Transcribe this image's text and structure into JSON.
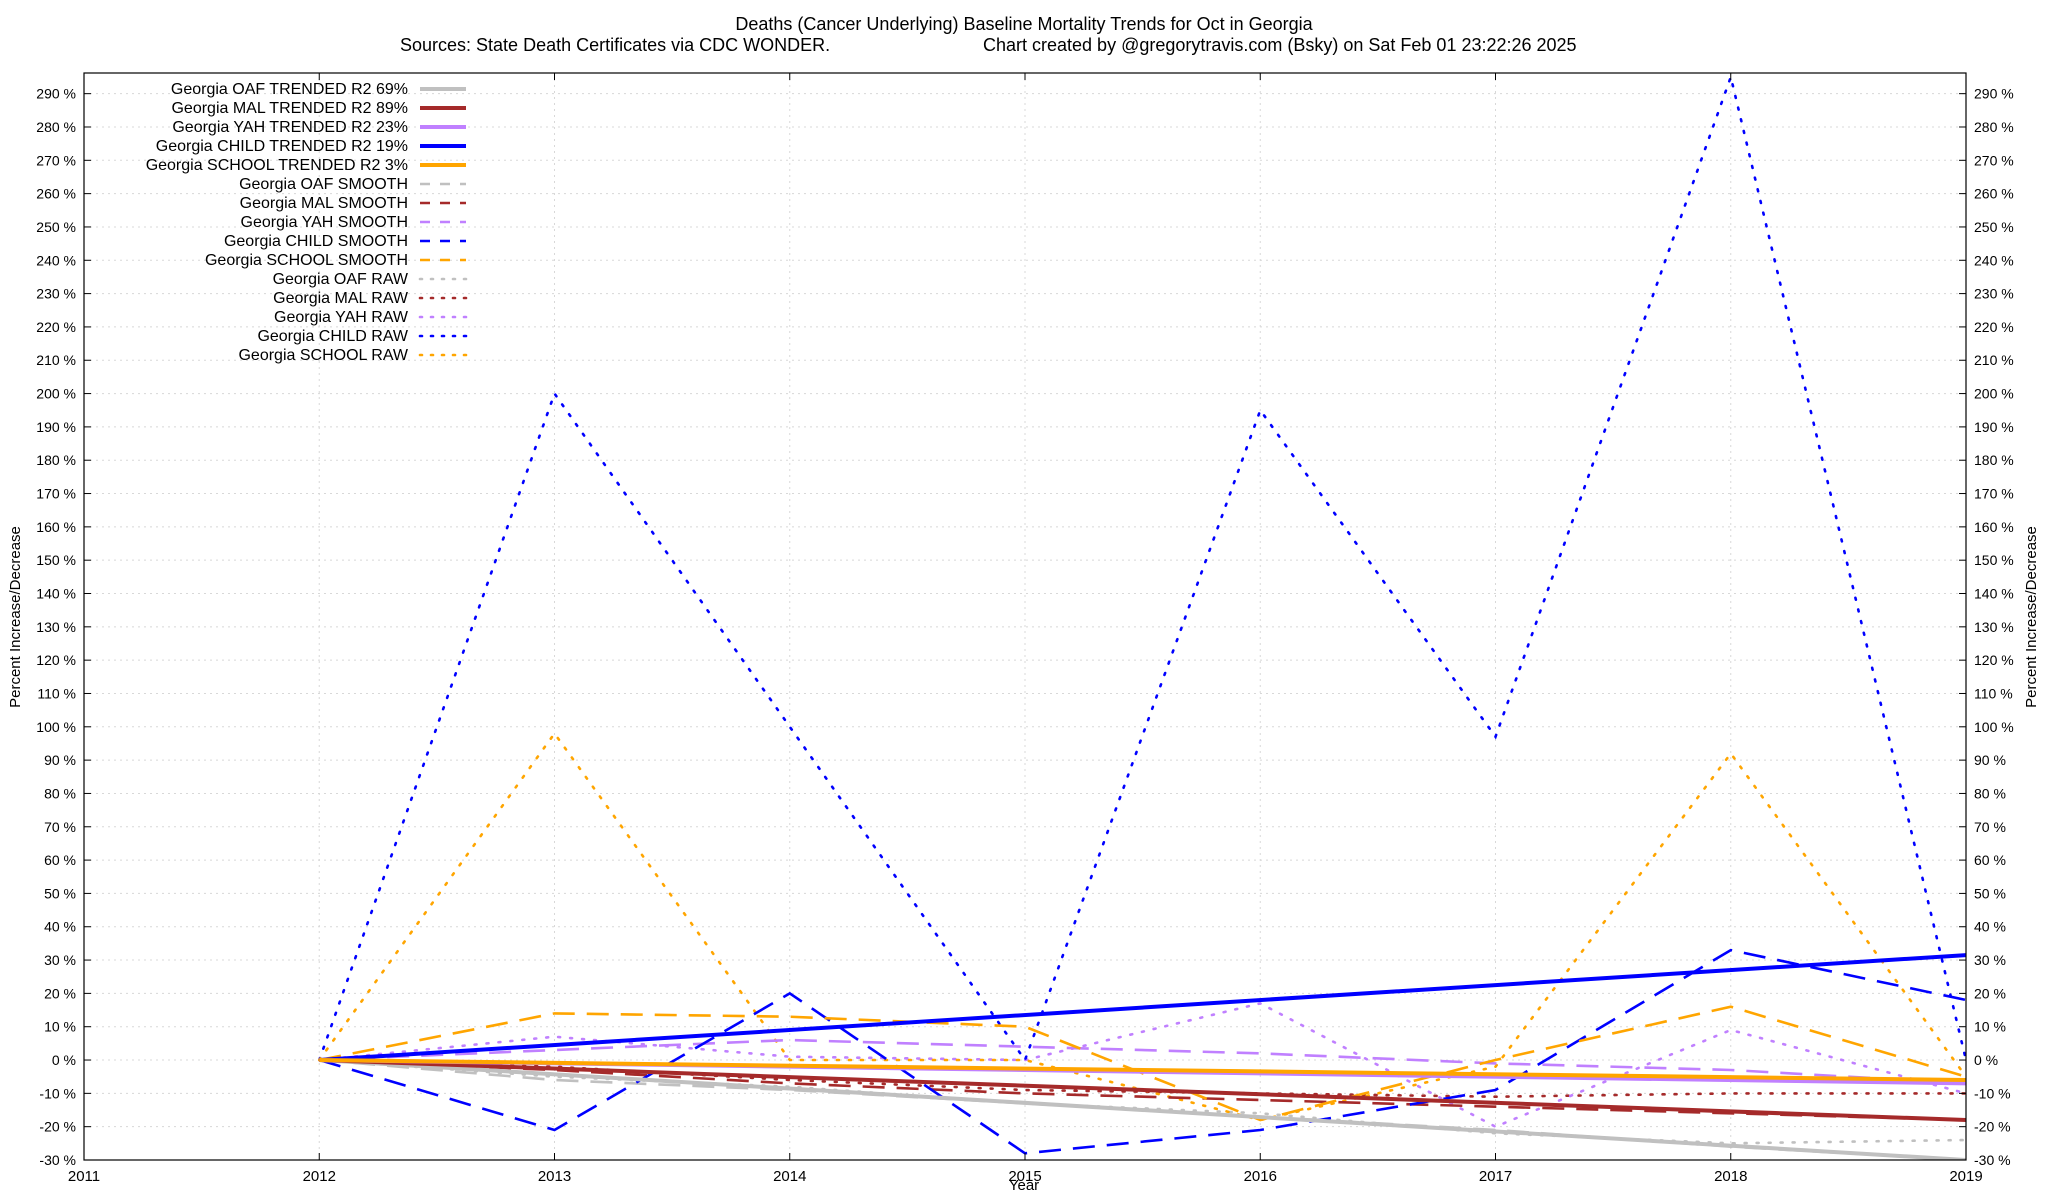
{
  "chart_data": {
    "type": "line",
    "title": "Deaths (Cancer Underlying)  Baseline Mortality Trends for Oct in Georgia",
    "subtitle_left": "Sources: State Death Certificates via CDC WONDER.",
    "subtitle_right": "Chart created by @gregorytravis.com (Bsky) on Sat Feb 01 23:22:26 2025",
    "xlabel": "Year",
    "ylabel_left": "Percent Increase/Decrease",
    "ylabel_right": "Percent Increase/Decrease",
    "xlim": [
      2011,
      2019
    ],
    "ylim": [
      -30,
      295
    ],
    "x_ticks": [
      2011,
      2012,
      2013,
      2014,
      2015,
      2016,
      2017,
      2018,
      2019
    ],
    "x_tick_labels": [
      "2011",
      "2012",
      "2013",
      "2014",
      "2015",
      "2016",
      "2017",
      "2018",
      "2019"
    ],
    "y_ticks": [
      -30,
      -20,
      -10,
      0,
      10,
      20,
      30,
      40,
      50,
      60,
      70,
      80,
      90,
      100,
      110,
      120,
      130,
      140,
      150,
      160,
      170,
      180,
      190,
      200,
      210,
      220,
      230,
      240,
      250,
      260,
      270,
      280,
      290
    ],
    "y_tick_labels": [
      "-30 %",
      "-20 %",
      "-10 %",
      "0 %",
      "10 %",
      "20 %",
      "30 %",
      "40 %",
      "50 %",
      "60 %",
      "70 %",
      "80 %",
      "90 %",
      "100 %",
      "110 %",
      "120 %",
      "130 %",
      "140 %",
      "150 %",
      "160 %",
      "170 %",
      "180 %",
      "190 %",
      "200 %",
      "210 %",
      "220 %",
      "230 %",
      "240 %",
      "250 %",
      "260 %",
      "270 %",
      "280 %",
      "290 %"
    ],
    "grid": true,
    "legend_position": "top-left",
    "series": [
      {
        "name": "Georgia OAF TRENDED R2  69%",
        "style": "solid",
        "color": "#c0c0c0",
        "x": [
          2012,
          2019
        ],
        "values": [
          0,
          -30
        ]
      },
      {
        "name": "Georgia MAL TRENDED R2  89%",
        "style": "solid",
        "color": "#a52a2a",
        "x": [
          2012,
          2019
        ],
        "values": [
          0,
          -18
        ]
      },
      {
        "name": "Georgia YAH TRENDED R2  23%",
        "style": "solid",
        "color": "#c080ff",
        "x": [
          2012,
          2019
        ],
        "values": [
          0,
          -7
        ]
      },
      {
        "name": "Georgia CHILD TRENDED R2  19%",
        "style": "solid",
        "color": "#0000ff",
        "x": [
          2012,
          2019
        ],
        "values": [
          0,
          31.5
        ]
      },
      {
        "name": "Georgia SCHOOL TRENDED R2   3%",
        "style": "solid",
        "color": "#ffa500",
        "x": [
          2012,
          2019
        ],
        "values": [
          0,
          -6
        ]
      },
      {
        "name": "Georgia OAF SMOOTH",
        "style": "dashed",
        "color": "#c0c0c0",
        "x": [
          2012,
          2013,
          2014,
          2015,
          2016,
          2017,
          2018,
          2019
        ],
        "values": [
          0,
          -6,
          -9,
          -13,
          -17,
          -21,
          -26,
          -30
        ]
      },
      {
        "name": "Georgia MAL SMOOTH",
        "style": "dashed",
        "color": "#a52a2a",
        "x": [
          2012,
          2013,
          2014,
          2015,
          2016,
          2017,
          2018,
          2019
        ],
        "values": [
          0,
          -3,
          -7,
          -10,
          -12,
          -14,
          -16,
          -18
        ]
      },
      {
        "name": "Georgia YAH SMOOTH",
        "style": "dashed",
        "color": "#c080ff",
        "x": [
          2012,
          2013,
          2014,
          2015,
          2016,
          2017,
          2018,
          2019
        ],
        "values": [
          0,
          3,
          6,
          4,
          2,
          -1,
          -3,
          -7
        ]
      },
      {
        "name": "Georgia CHILD SMOOTH",
        "style": "dashed",
        "color": "#0000ff",
        "x": [
          2012,
          2013,
          2014,
          2015,
          2016,
          2017,
          2018,
          2019
        ],
        "values": [
          0,
          -21,
          20,
          -28,
          -21,
          -9,
          33,
          18
        ]
      },
      {
        "name": "Georgia SCHOOL SMOOTH",
        "style": "dashed",
        "color": "#ffa500",
        "x": [
          2012,
          2013,
          2014,
          2015,
          2016,
          2017,
          2018,
          2019
        ],
        "values": [
          0,
          14,
          13,
          10,
          -18,
          0,
          16,
          -5
        ]
      },
      {
        "name": "Georgia OAF RAW",
        "style": "dotted",
        "color": "#c0c0c0",
        "x": [
          2012,
          2013,
          2014,
          2015,
          2016,
          2017,
          2018,
          2019
        ],
        "values": [
          0,
          -5,
          -8,
          -13,
          -16,
          -22,
          -25,
          -24
        ]
      },
      {
        "name": "Georgia MAL RAW",
        "style": "dotted",
        "color": "#a52a2a",
        "x": [
          2012,
          2013,
          2014,
          2015,
          2016,
          2017,
          2018,
          2019
        ],
        "values": [
          0,
          -2,
          -6,
          -9,
          -10,
          -11,
          -10,
          -10
        ]
      },
      {
        "name": "Georgia YAH RAW",
        "style": "dotted",
        "color": "#c080ff",
        "x": [
          2012,
          2013,
          2014,
          2015,
          2016,
          2017,
          2018,
          2019
        ],
        "values": [
          0,
          7,
          1,
          0,
          17,
          -20,
          9,
          -10
        ]
      },
      {
        "name": "Georgia CHILD RAW",
        "style": "dotted",
        "color": "#0000ff",
        "x": [
          2012,
          2013,
          2014,
          2015,
          2016,
          2017,
          2018,
          2019
        ],
        "values": [
          0,
          200,
          100,
          0,
          195,
          97,
          295,
          0
        ]
      },
      {
        "name": "Georgia SCHOOL RAW",
        "style": "dotted",
        "color": "#ffa500",
        "x": [
          2012,
          2013,
          2014,
          2015,
          2016,
          2017,
          2018,
          2019
        ],
        "values": [
          0,
          98,
          0,
          0,
          -18,
          -2,
          92,
          -5
        ]
      }
    ]
  }
}
